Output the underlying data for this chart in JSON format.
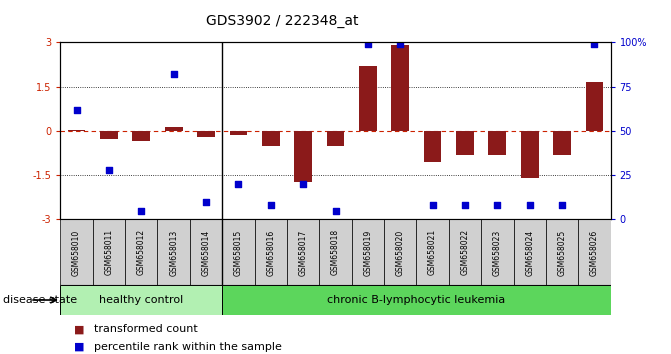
{
  "title": "GDS3902 / 222348_at",
  "samples": [
    "GSM658010",
    "GSM658011",
    "GSM658012",
    "GSM658013",
    "GSM658014",
    "GSM658015",
    "GSM658016",
    "GSM658017",
    "GSM658018",
    "GSM658019",
    "GSM658020",
    "GSM658021",
    "GSM658022",
    "GSM658023",
    "GSM658024",
    "GSM658025",
    "GSM658026"
  ],
  "bar_values": [
    0.04,
    -0.28,
    -0.35,
    0.15,
    -0.22,
    -0.12,
    -0.52,
    -1.72,
    -0.52,
    2.2,
    2.9,
    -1.05,
    -0.82,
    -0.82,
    -1.6,
    -0.82,
    1.65
  ],
  "dot_values": [
    62,
    28,
    5,
    82,
    10,
    20,
    8,
    20,
    5,
    99,
    99,
    8,
    8,
    8,
    8,
    8,
    99
  ],
  "healthy_count": 5,
  "bar_color": "#8B1A1A",
  "dot_color": "#0000CC",
  "ylim_left": [
    -3,
    3
  ],
  "ylim_right": [
    0,
    100
  ],
  "yticks_left": [
    -3,
    -1.5,
    0,
    1.5,
    3
  ],
  "ytick_labels_left": [
    "-3",
    "-1.5",
    "0",
    "1.5",
    "3"
  ],
  "yticks_right": [
    0,
    25,
    50,
    75,
    100
  ],
  "ytick_labels_right": [
    "0",
    "25",
    "50",
    "75",
    "100%"
  ],
  "dotted_lines": [
    -1.5,
    1.5
  ],
  "background_color": "#ffffff",
  "plot_bg": "#ffffff",
  "label_bar": "transformed count",
  "label_dot": "percentile rank within the sample",
  "healthy_label": "healthy control",
  "disease_label": "chronic B-lymphocytic leukemia",
  "disease_state_label": "disease state",
  "healthy_color": "#b2f0b2",
  "disease_color": "#5cd65c",
  "bar_width": 0.55,
  "title_fontsize": 10,
  "tick_label_fontsize": 7,
  "legend_fontsize": 8,
  "disease_fontsize": 8
}
